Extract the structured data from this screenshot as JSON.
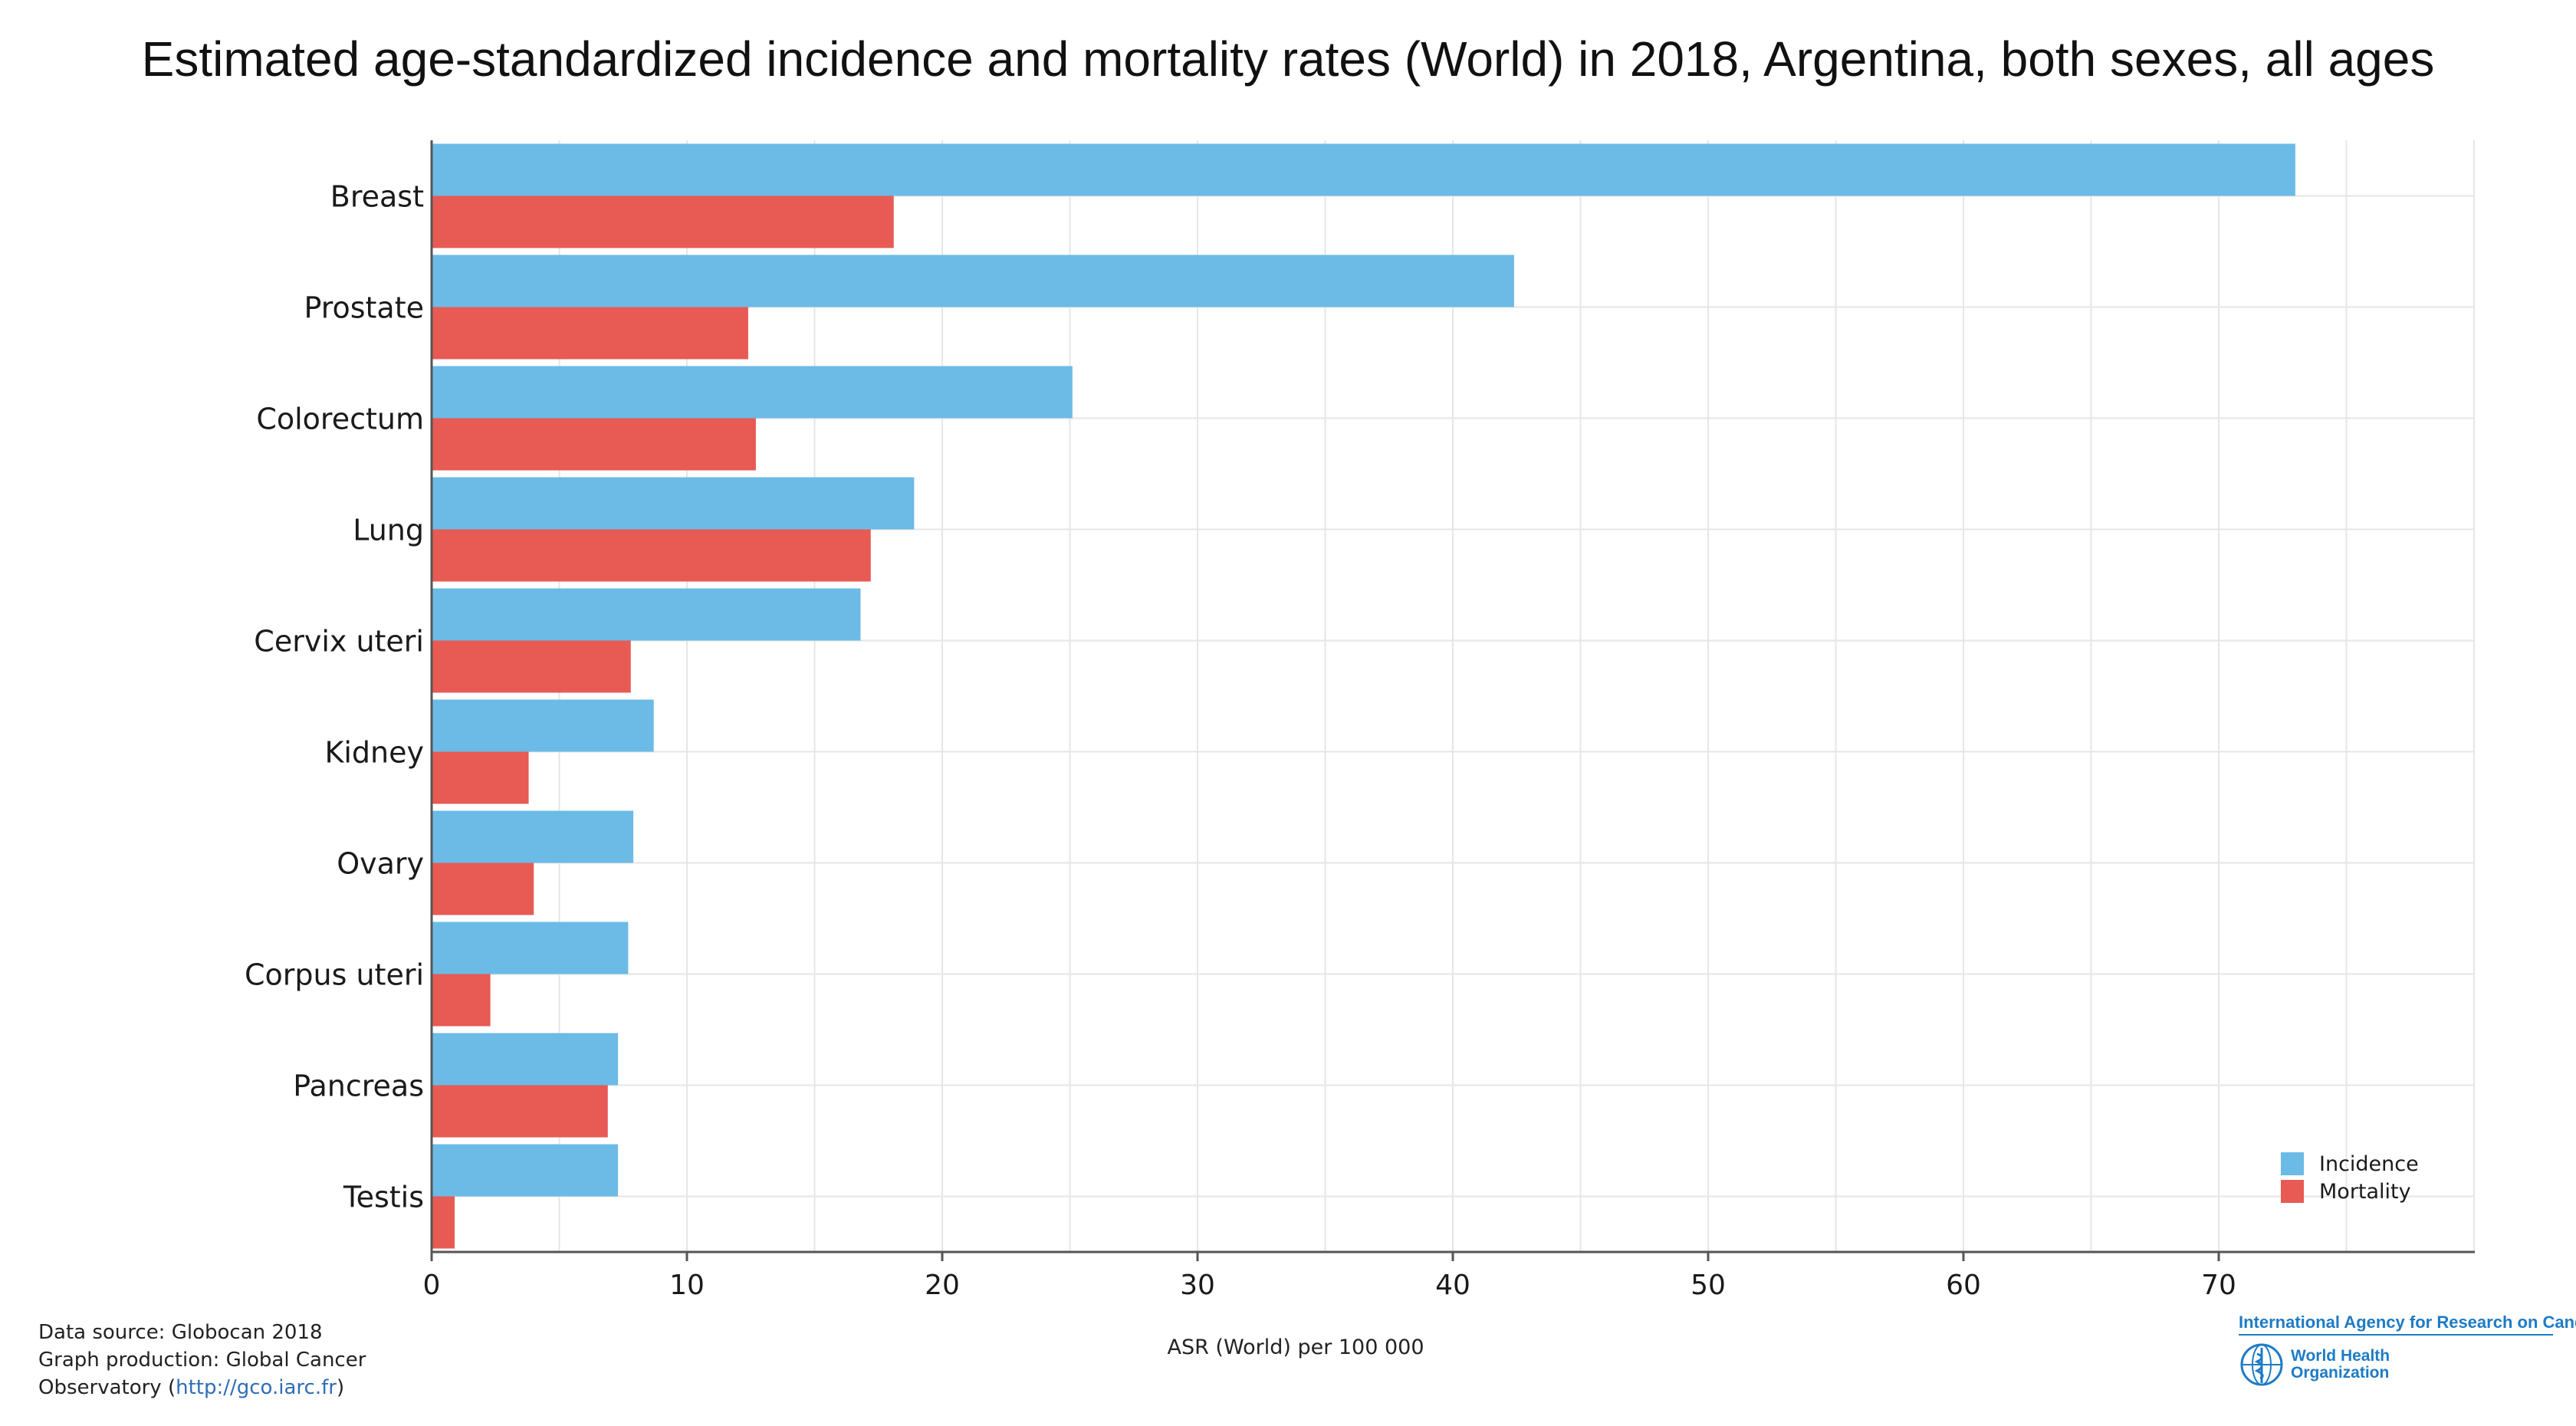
{
  "title": "Estimated age-standardized incidence and mortality rates (World) in 2018, Argentina, both sexes, all ages",
  "footer": {
    "line1": "Data source: Globocan 2018",
    "line2": "Graph production: Global Cancer",
    "line3_prefix": "Observatory (",
    "line3_link": "http://gco.iarc.fr",
    "line3_suffix": ")"
  },
  "logos": {
    "iarc": "International Agency for Research on Cancer",
    "who": "World Health Organization",
    "who_icon": "who-emblem-icon"
  },
  "colors": {
    "incidence": "#6bbbe6",
    "mortality": "#e85a54",
    "grid": "#e6e6e6",
    "axis": "#555555"
  },
  "chart_data": {
    "type": "bar",
    "orientation": "horizontal",
    "title": "Estimated age-standardized incidence and mortality rates (World) in 2018, Argentina, both sexes, all ages",
    "xlabel": "ASR (World) per 100 000",
    "ylabel": "",
    "categories": [
      "Breast",
      "Prostate",
      "Colorectum",
      "Lung",
      "Cervix uteri",
      "Kidney",
      "Ovary",
      "Corpus uteri",
      "Pancreas",
      "Testis"
    ],
    "series": [
      {
        "name": "Incidence",
        "color": "#6bbbe6",
        "values": [
          73.0,
          42.4,
          25.1,
          18.9,
          16.8,
          8.7,
          7.9,
          7.7,
          7.3,
          7.3
        ]
      },
      {
        "name": "Mortality",
        "color": "#e85a54",
        "values": [
          18.1,
          12.4,
          12.7,
          17.2,
          7.8,
          3.8,
          4.0,
          2.3,
          6.9,
          0.9
        ]
      }
    ],
    "xlim": [
      0,
      80
    ],
    "xticks": [
      0,
      10,
      20,
      30,
      40,
      50,
      60,
      70
    ],
    "grid": true,
    "legend_position": "bottom-right"
  }
}
